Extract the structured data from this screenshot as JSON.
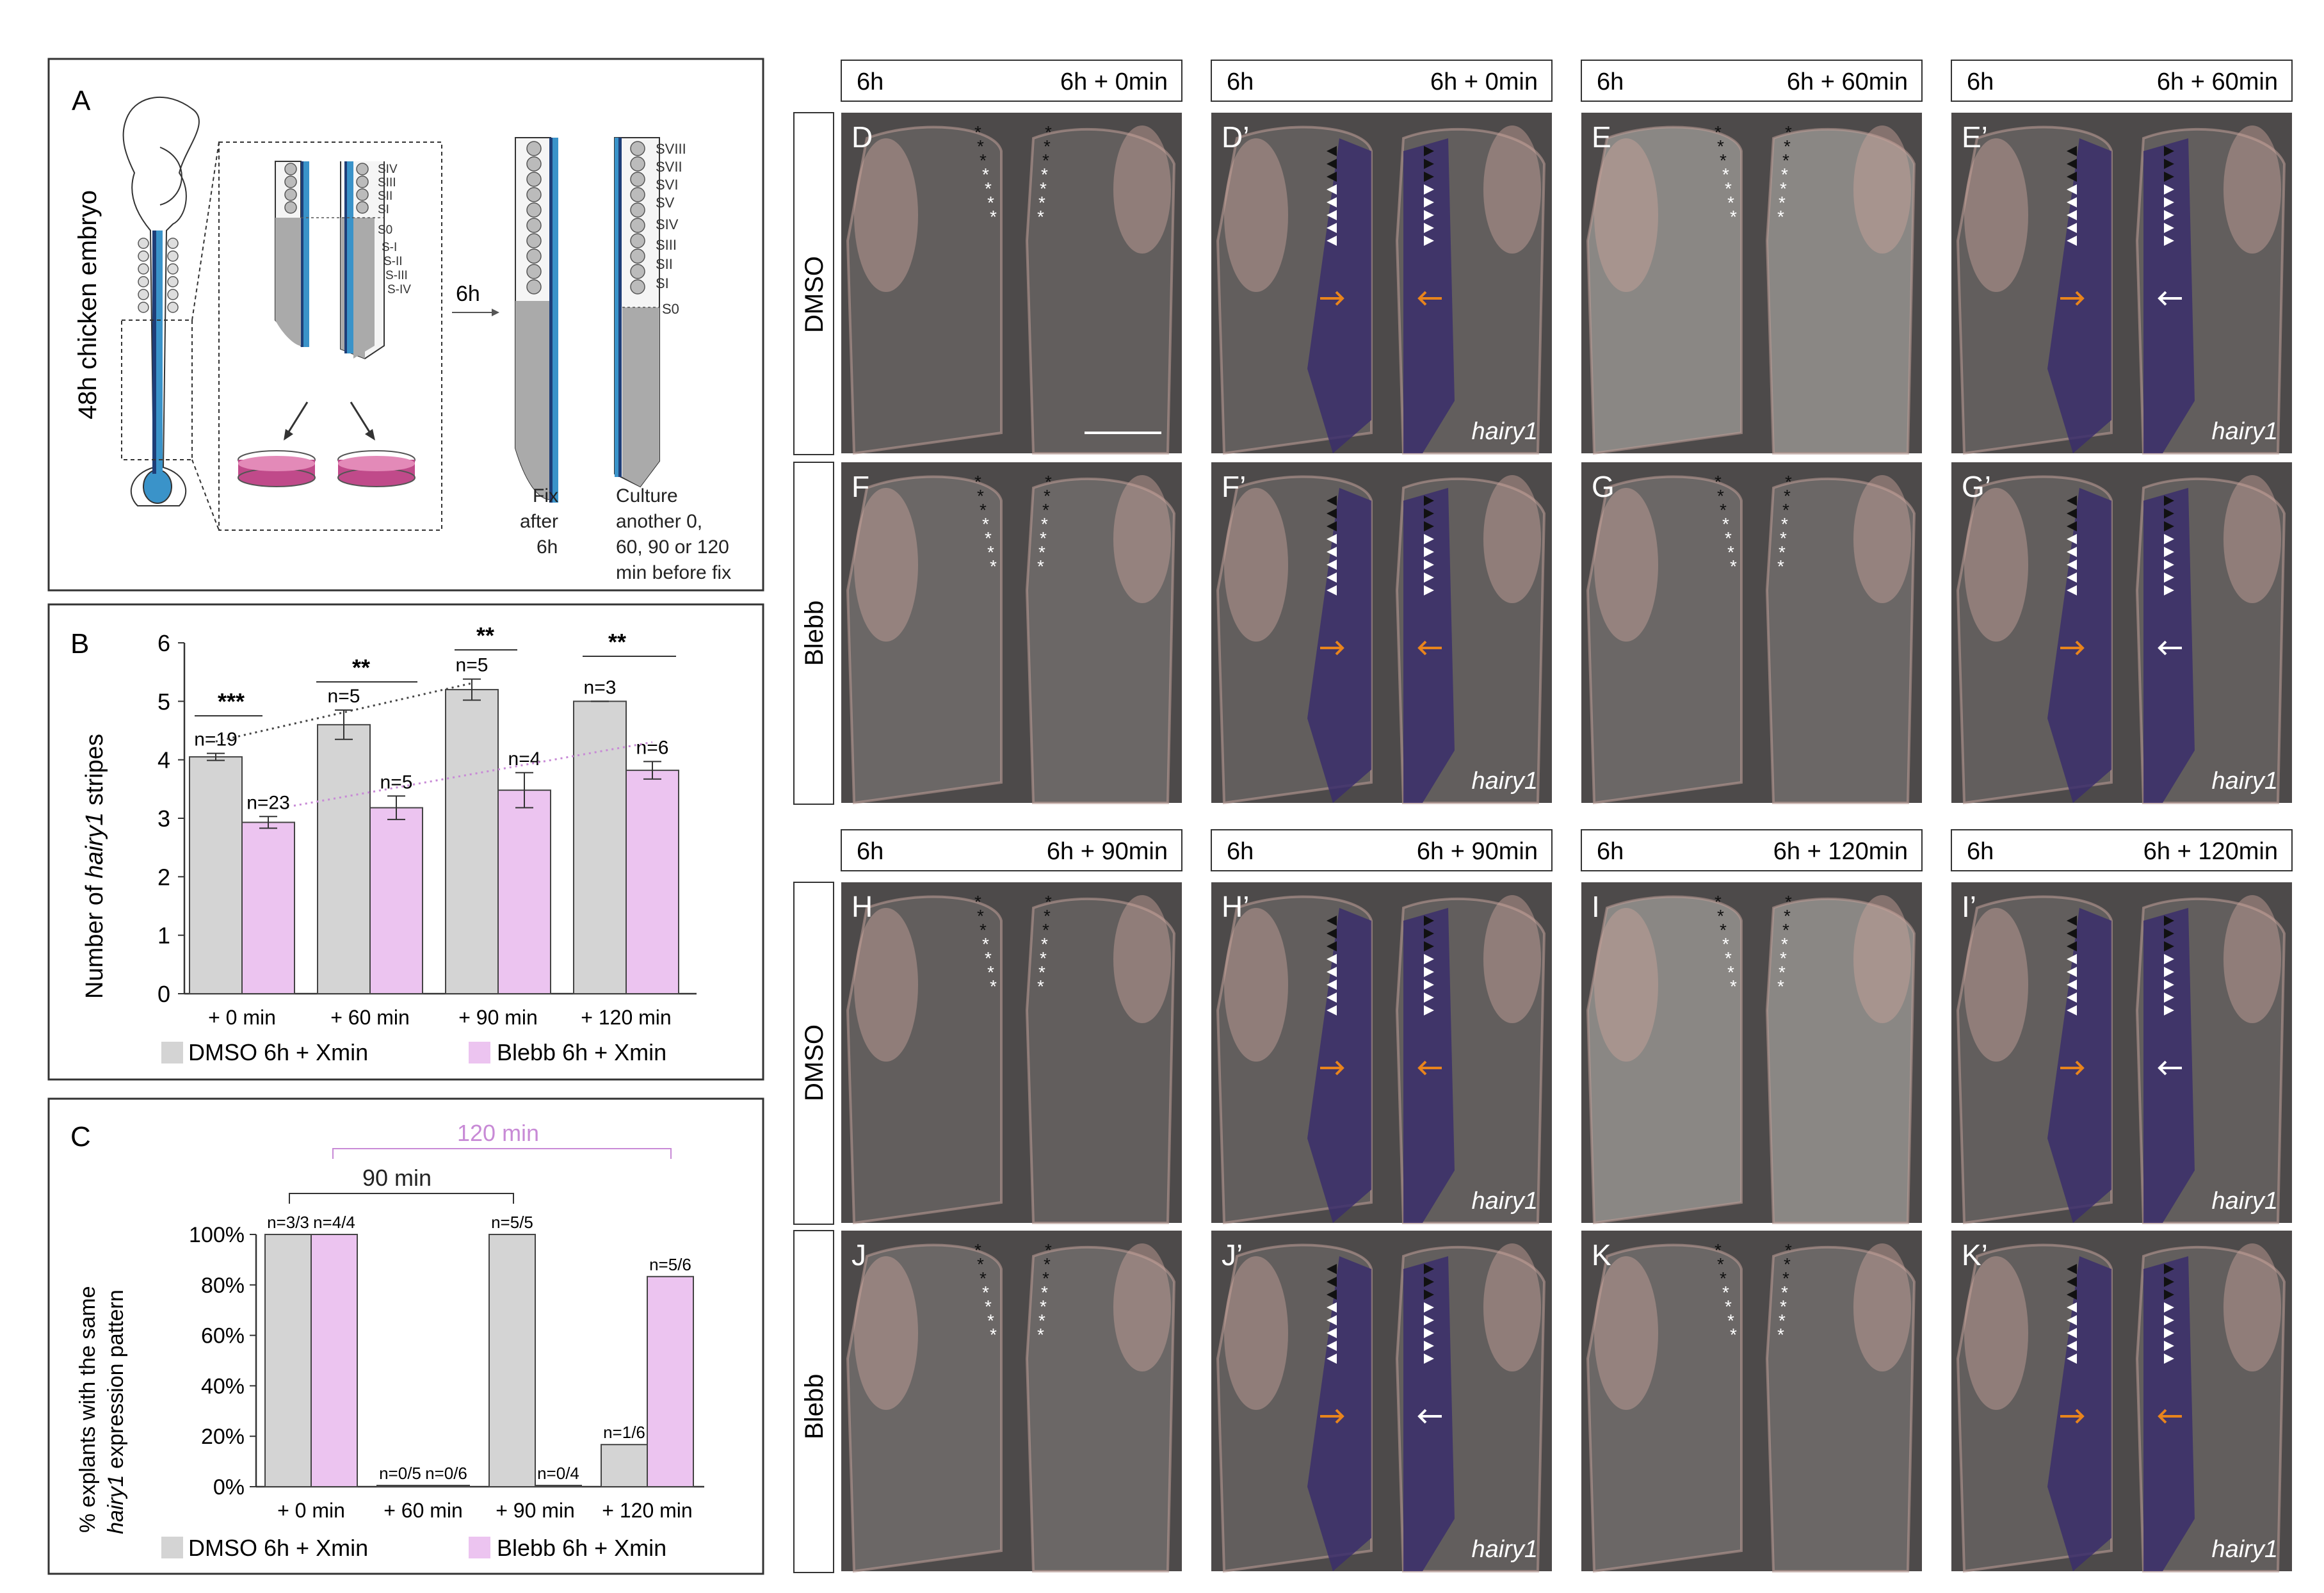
{
  "panelA": {
    "letter": "A",
    "vertical_label": "48h chicken embryo",
    "somites_left": [
      "SIV",
      "SIII",
      "SII",
      "SI",
      "S0",
      "S-I",
      "S-II",
      "S-III",
      "S-IV"
    ],
    "somites_right": [
      "SVIII",
      "SVII",
      "SVI",
      "SV",
      "SIV",
      "SIII",
      "SII",
      "SI",
      "S0"
    ],
    "time_label": "6h",
    "fix_label": [
      "Fix",
      "after",
      "6h"
    ],
    "culture_label": [
      "Culture",
      "another 0,",
      "60, 90 or 120",
      "min before fix"
    ]
  },
  "panelB": {
    "letter": "B",
    "legend": [
      "DMSO 6h + Xmin",
      "Blebb 6h + Xmin"
    ],
    "n_labels_dmso": [
      "n=19",
      "n=5",
      "n=5",
      "n=3"
    ],
    "n_labels_blebb": [
      "n=23",
      "n=5",
      "n=4",
      "n=6"
    ],
    "significance": [
      "***",
      "**",
      "**",
      "**"
    ]
  },
  "panelC": {
    "letter": "C",
    "legend": [
      "DMSO 6h + Xmin",
      "Blebb 6h + Xmin"
    ],
    "n_labels_dmso": [
      "n=3/3",
      "n=0/5",
      "n=5/5",
      "n=1/6"
    ],
    "n_labels_blebb": [
      "n=4/4",
      "n=0/6",
      "n=0/4",
      "n=5/6"
    ],
    "bracket_90": "90 min",
    "bracket_120": "120 min"
  },
  "chart_data": [
    {
      "type": "bar",
      "panel": "B",
      "categories": [
        "+ 0 min",
        "+ 60 min",
        "+ 90 min",
        "+ 120 min"
      ],
      "series": [
        {
          "name": "DMSO 6h + Xmin",
          "values": [
            4.05,
            4.6,
            5.2,
            5.0
          ],
          "errors": [
            0.06,
            0.25,
            0.18,
            0.0
          ]
        },
        {
          "name": "Blebb 6h + Xmin",
          "values": [
            2.93,
            3.18,
            3.48,
            3.82
          ],
          "errors": [
            0.1,
            0.2,
            0.3,
            0.15
          ]
        }
      ],
      "ylabel": "Number of hairy1 stripes",
      "ylim": [
        0,
        6
      ],
      "yticks": [
        0,
        1,
        2,
        3,
        4,
        5,
        6
      ]
    },
    {
      "type": "bar",
      "panel": "C",
      "categories": [
        "+ 0 min",
        "+ 60 min",
        "+ 90 min",
        "+ 120 min"
      ],
      "series": [
        {
          "name": "DMSO 6h + Xmin",
          "values": [
            100,
            0,
            100,
            16.7
          ]
        },
        {
          "name": "Blebb 6h + Xmin",
          "values": [
            100,
            0,
            0,
            83.3
          ]
        }
      ],
      "ylabel": "% explants with the same hairy1 expression pattern",
      "ylim": [
        0,
        100
      ],
      "yticks": [
        "0%",
        "20%",
        "40%",
        "60%",
        "80%",
        "100%"
      ]
    }
  ],
  "colors": {
    "dmso": "#d4d4d4",
    "blebb": "#ecc4f0",
    "blebb_dotted": "#c88ad6",
    "axis": "#333333",
    "embryo_blue": "#3a93c9",
    "dish_magenta": "#c04a8a",
    "arrow_orange": "#e8841c"
  },
  "images": {
    "row_labels": [
      "DMSO",
      "Blebb",
      "DMSO",
      "Blebb"
    ],
    "gene_label": "hairy1",
    "headers": [
      {
        "left": "6h",
        "right": "6h + 0min"
      },
      {
        "left": "6h",
        "right": "6h + 0min"
      },
      {
        "left": "6h",
        "right": "6h + 60min"
      },
      {
        "left": "6h",
        "right": "6h + 60min"
      },
      {
        "left": "6h",
        "right": "6h + 90min"
      },
      {
        "left": "6h",
        "right": "6h + 90min"
      },
      {
        "left": "6h",
        "right": "6h + 120min"
      },
      {
        "left": "6h",
        "right": "6h + 120min"
      }
    ],
    "panel_letters": [
      [
        "D",
        "D’",
        "E",
        "E’"
      ],
      [
        "F",
        "F’",
        "G",
        "G’"
      ],
      [
        "H",
        "H’",
        "I",
        "I’"
      ],
      [
        "J",
        "J’",
        "K",
        "K’"
      ]
    ]
  }
}
